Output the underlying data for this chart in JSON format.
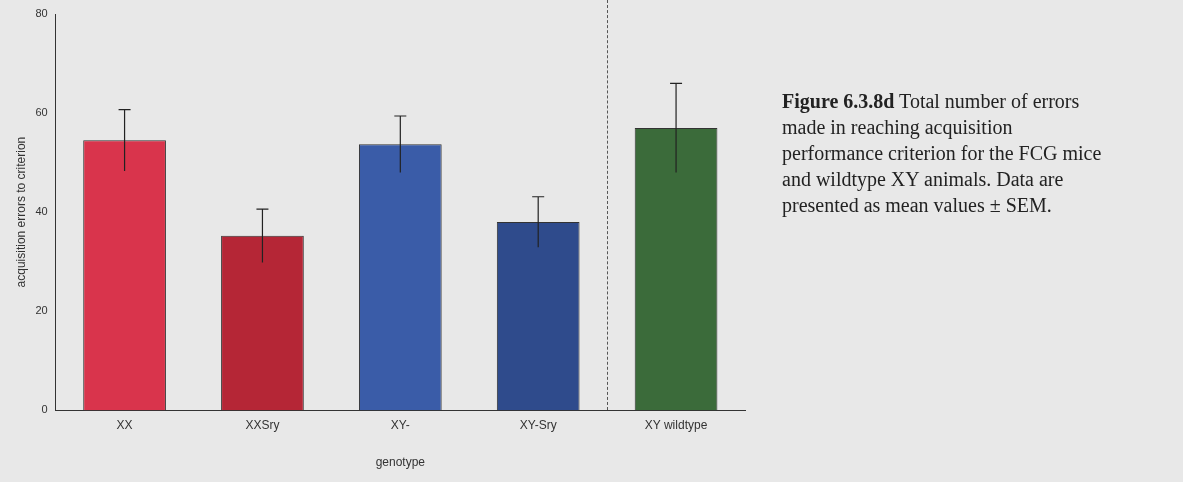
{
  "chart_data": {
    "type": "bar",
    "xlabel": "genotype",
    "ylabel": "acquisition errors to criterion",
    "categories": [
      "XX",
      "XXSry",
      "XY-",
      "XY-Sry",
      "XY wildtype"
    ],
    "values": [
      54.5,
      35.2,
      53.7,
      38.0,
      57.0
    ],
    "errors": [
      6.2,
      5.4,
      5.7,
      5.1,
      9
    ],
    "colors": [
      "#d9344c",
      "#b52636",
      "#3a5ca8",
      "#2f4b8c",
      "#3b6b3a"
    ],
    "ylim": [
      0,
      80
    ],
    "yticks": [
      0,
      20,
      40,
      60,
      80
    ],
    "grid": false,
    "legend": false,
    "annotations": [
      "Figure 6.3.8d Total number of errors made in reaching acquisition performance criterion for the FCG mice and wildtype XY animals.  Data are presented as mean values ± SEM."
    ]
  }
}
